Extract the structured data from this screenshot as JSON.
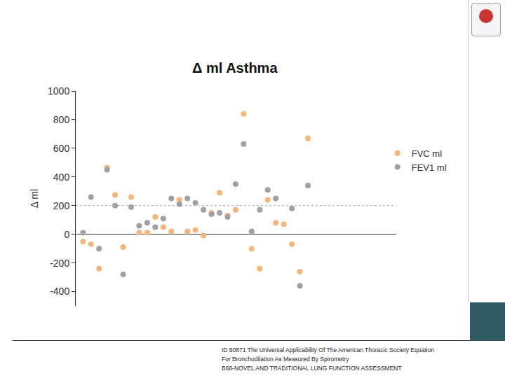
{
  "chart_data": {
    "type": "scatter",
    "title": "Δ ml Asthma",
    "y_label": "Δ ml",
    "x": [
      1,
      2,
      3,
      4,
      5,
      6,
      7,
      8,
      9,
      10,
      11,
      12,
      13,
      14,
      15,
      16,
      17,
      18,
      19,
      20,
      21,
      22,
      23,
      24,
      25,
      26,
      27,
      28,
      29
    ],
    "series": [
      {
        "name": "FVC ml",
        "color": "#f4b67a",
        "marker": "circle",
        "values": [
          -50,
          -70,
          -240,
          465,
          275,
          -90,
          260,
          10,
          10,
          120,
          50,
          20,
          240,
          20,
          30,
          -10,
          150,
          290,
          130,
          170,
          840,
          -100,
          -240,
          240,
          80,
          70,
          -70,
          -260,
          670
        ]
      },
      {
        "name": "FEV1 ml",
        "color": "#a0a0a4",
        "marker": "circle",
        "values": [
          10,
          260,
          -100,
          450,
          200,
          -280,
          190,
          60,
          80,
          50,
          110,
          250,
          210,
          250,
          220,
          170,
          140,
          150,
          120,
          350,
          630,
          20,
          170,
          310,
          250,
          null,
          180,
          -360,
          340
        ]
      }
    ],
    "xlim": [
      0.1,
      40
    ],
    "ylim": [
      -500,
      1000
    ],
    "yticks": [
      -400,
      -200,
      0,
      200,
      400,
      600,
      800,
      1000
    ],
    "reference_line": 200,
    "tick_labels": "y",
    "grid": false,
    "legend": "right"
  },
  "footer": [
    "ID 50871 The Universal Applicability Of The American Thoracic Society Equation",
    "For Bronchodilation As Measured By Spirometry",
    "B66-NOVEL AND TRADITIONAL LUNG FUNCTION ASSESSMENT"
  ]
}
